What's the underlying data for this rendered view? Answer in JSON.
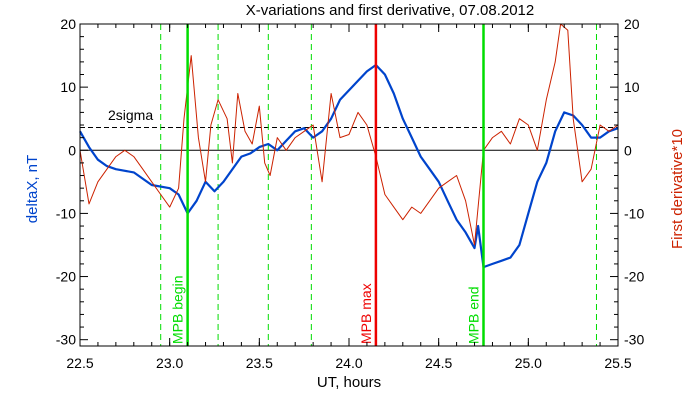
{
  "chart_data": {
    "type": "line",
    "title": "X-variations and first derivative, 07.08.2012",
    "xlabel": "UT, hours",
    "ylabel_left": "deltaX, nT",
    "ylabel_right": "First derivative*10",
    "xlim": [
      22.5,
      25.5
    ],
    "ylim": [
      -31,
      20
    ],
    "x_ticks": [
      22.5,
      23.0,
      23.5,
      24.0,
      24.5,
      25.0,
      25.5
    ],
    "x_tick_labels": [
      "22.5",
      "23.0",
      "23.5",
      "24.0",
      "24.5",
      "25.0",
      "25.5"
    ],
    "y_ticks": [
      -30,
      -20,
      -10,
      0,
      10,
      20
    ],
    "y_tick_labels": [
      "-30",
      "-20",
      "-10",
      "0",
      "10",
      "20"
    ],
    "grid": false,
    "colors": {
      "deltaX": "#0044cc",
      "derivative": "#cc2200",
      "mpb": "#00dd00",
      "mpb_max": "#ee0000",
      "left_axis_label": "#0044cc",
      "right_axis_label": "#cc2200"
    },
    "sigma_level": 3.6,
    "sigma_label": "2sigma",
    "zero_line": 0,
    "dashed_vertical_lines": [
      22.95,
      23.27,
      23.55,
      23.79,
      25.38
    ],
    "solid_vertical_lines": [
      {
        "x": 23.1,
        "label": "MPB begin",
        "color": "#00dd00"
      },
      {
        "x": 24.15,
        "label": "MPB max",
        "color": "#ee0000"
      },
      {
        "x": 24.75,
        "label": "MPB end",
        "color": "#00dd00"
      }
    ],
    "series": [
      {
        "name": "deltaX",
        "color": "#0044cc",
        "x": [
          22.5,
          22.55,
          22.6,
          22.65,
          22.7,
          22.8,
          22.9,
          23.0,
          23.05,
          23.1,
          23.15,
          23.2,
          23.25,
          23.3,
          23.35,
          23.4,
          23.45,
          23.5,
          23.55,
          23.6,
          23.65,
          23.7,
          23.75,
          23.8,
          23.85,
          23.9,
          23.95,
          24.0,
          24.05,
          24.1,
          24.15,
          24.2,
          24.25,
          24.3,
          24.35,
          24.4,
          24.45,
          24.5,
          24.55,
          24.6,
          24.65,
          24.7,
          24.72,
          24.75,
          24.8,
          24.85,
          24.9,
          24.95,
          25.0,
          25.05,
          25.1,
          25.15,
          25.2,
          25.25,
          25.3,
          25.35,
          25.4,
          25.45,
          25.5
        ],
        "values": [
          3,
          0.5,
          -1.5,
          -2.5,
          -3,
          -3.5,
          -5.5,
          -6,
          -7,
          -10,
          -8,
          -5,
          -6.5,
          -5,
          -3,
          -1,
          -0.5,
          0.5,
          1,
          0,
          1.5,
          3,
          3.5,
          2,
          3,
          5,
          8,
          9.5,
          11,
          12.5,
          13.5,
          12,
          9,
          5,
          2,
          -1,
          -3,
          -5,
          -8,
          -11,
          -13,
          -15.5,
          -12,
          -18.5,
          -18,
          -17.5,
          -17,
          -15,
          -10,
          -5,
          -2,
          3,
          6,
          5.5,
          4,
          2,
          2,
          3,
          3.5
        ]
      },
      {
        "name": "First derivative*10",
        "color": "#cc2200",
        "x": [
          22.5,
          22.55,
          22.6,
          22.65,
          22.7,
          22.75,
          22.8,
          22.85,
          22.9,
          22.95,
          23.0,
          23.05,
          23.08,
          23.12,
          23.16,
          23.2,
          23.23,
          23.27,
          23.32,
          23.35,
          23.38,
          23.42,
          23.46,
          23.5,
          23.53,
          23.56,
          23.6,
          23.65,
          23.7,
          23.75,
          23.8,
          23.85,
          23.9,
          23.95,
          24.0,
          24.05,
          24.1,
          24.15,
          24.2,
          24.25,
          24.3,
          24.35,
          24.4,
          24.45,
          24.5,
          24.55,
          24.6,
          24.65,
          24.7,
          24.75,
          24.8,
          24.85,
          24.9,
          24.95,
          25.0,
          25.05,
          25.1,
          25.15,
          25.18,
          25.22,
          25.25,
          25.3,
          25.35,
          25.4,
          25.45,
          25.5
        ],
        "values": [
          0,
          -8.5,
          -5,
          -3,
          -1,
          0,
          -1,
          -3,
          -5,
          -7,
          -9,
          -6,
          5,
          15,
          2,
          -5,
          4,
          8,
          5,
          -2,
          9,
          3,
          1,
          7,
          -2,
          -4,
          2,
          0,
          2,
          3,
          4,
          -5,
          9,
          2,
          2.5,
          6,
          4,
          -1,
          -7,
          -9,
          -11,
          -9,
          -10,
          -8,
          -6,
          -5,
          -4,
          -8,
          -15,
          0,
          2,
          3,
          1,
          5,
          4,
          0,
          8,
          14,
          20,
          19,
          5,
          -5,
          -3,
          4,
          3,
          4
        ]
      }
    ]
  }
}
